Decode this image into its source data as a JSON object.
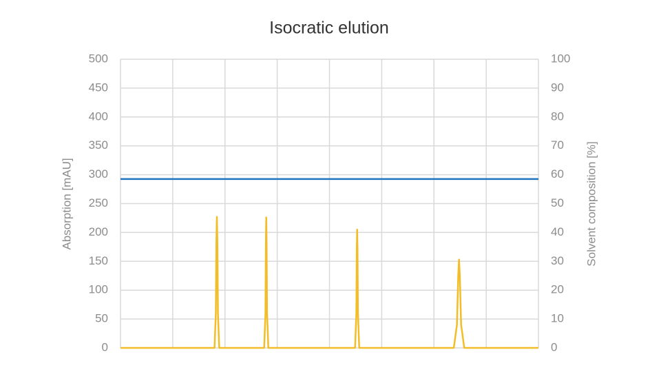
{
  "chart_data": {
    "type": "line",
    "title": "Isocratic elution",
    "ylabel": "Absorption [mAU]",
    "y2label": "Solvent composition [%]",
    "xlim": [
      0,
      8
    ],
    "xticks": [
      0,
      1,
      2,
      3,
      4,
      5,
      6,
      7,
      8
    ],
    "ylim": [
      0,
      500
    ],
    "yticks": [
      0,
      50,
      100,
      150,
      200,
      250,
      300,
      350,
      400,
      450,
      500
    ],
    "y2lim": [
      0,
      100
    ],
    "y2ticks": [
      0,
      10,
      20,
      30,
      40,
      50,
      60,
      70,
      80,
      90,
      100
    ],
    "grid": true,
    "series": [
      {
        "color": "#f2bd26",
        "x": [
          0,
          1.8,
          1.825,
          1.835,
          1.845,
          1.855,
          1.865,
          1.89,
          2.75,
          2.775,
          2.783,
          2.79,
          2.797,
          2.805,
          2.83,
          4.49,
          4.515,
          4.523,
          4.53,
          4.537,
          4.545,
          4.57,
          6.38,
          6.44,
          6.465,
          6.48,
          6.495,
          6.52,
          6.58,
          8
        ],
        "values": [
          0,
          0,
          60,
          180,
          227,
          180,
          60,
          0,
          0,
          60,
          180,
          226,
          180,
          60,
          0,
          0,
          60,
          170,
          205,
          170,
          60,
          0,
          0,
          40,
          125,
          153,
          125,
          40,
          0,
          0
        ]
      },
      {
        "color": "#1f74bf",
        "axis": "y2",
        "x": [
          0,
          8
        ],
        "values": [
          58.5,
          58.5
        ]
      }
    ]
  }
}
